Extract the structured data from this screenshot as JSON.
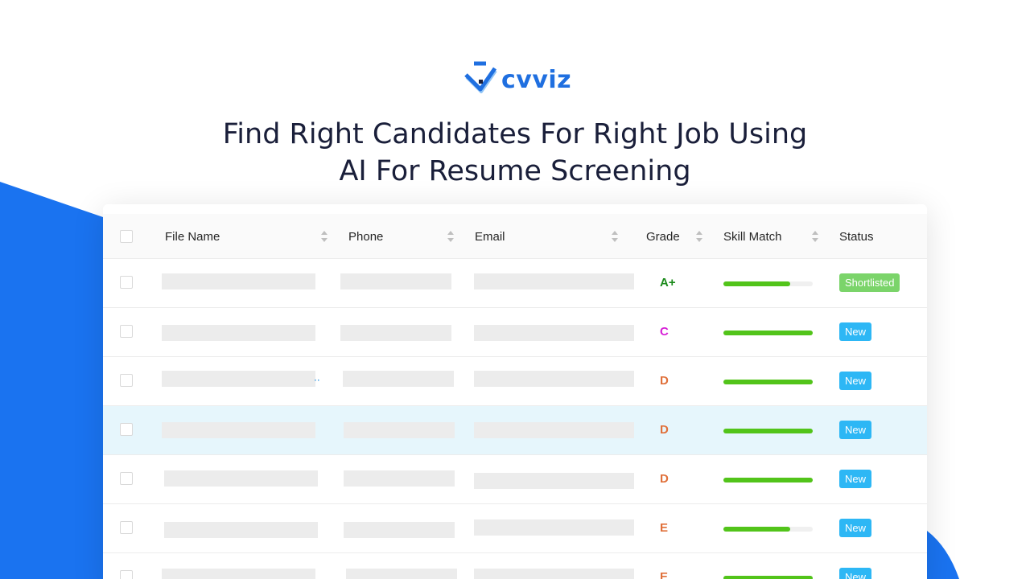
{
  "brand": {
    "name": "cvviz",
    "color": "#1f6fe0"
  },
  "headline": {
    "line1": "Find Right Candidates For Right Job Using",
    "line2": "AI For Resume Screening"
  },
  "table": {
    "columns": {
      "file_name": "File Name",
      "phone": "Phone",
      "email": "Email",
      "grade": "Grade",
      "skill_match": "Skill Match",
      "status": "Status"
    },
    "rows": [
      {
        "grade": "A+",
        "grade_color": "#1a8a1a",
        "skill_match_fraction": 0.75,
        "status": "Shortlisted",
        "status_color": "#7bd46a",
        "highlighted": false
      },
      {
        "grade": "C",
        "grade_color": "#d61fd6",
        "skill_match_fraction": 1.0,
        "status": "New",
        "status_color": "#2db7f5",
        "highlighted": false
      },
      {
        "grade": "D",
        "grade_color": "#e0703a",
        "skill_match_fraction": 1.0,
        "status": "New",
        "status_color": "#2db7f5",
        "highlighted": false
      },
      {
        "grade": "D",
        "grade_color": "#e0703a",
        "skill_match_fraction": 1.0,
        "status": "New",
        "status_color": "#2db7f5",
        "highlighted": true
      },
      {
        "grade": "D",
        "grade_color": "#e0703a",
        "skill_match_fraction": 1.0,
        "status": "New",
        "status_color": "#2db7f5",
        "highlighted": false
      },
      {
        "grade": "E",
        "grade_color": "#e0703a",
        "skill_match_fraction": 0.75,
        "status": "New",
        "status_color": "#2db7f5",
        "highlighted": false
      },
      {
        "grade": "E",
        "grade_color": "#e0703a",
        "skill_match_fraction": 1.0,
        "status": "New",
        "status_color": "#2db7f5",
        "highlighted": false
      }
    ]
  },
  "colors": {
    "accent_blue": "#1a73f0",
    "bar_green": "#52c41a",
    "highlight_row": "#e6f6fc"
  }
}
